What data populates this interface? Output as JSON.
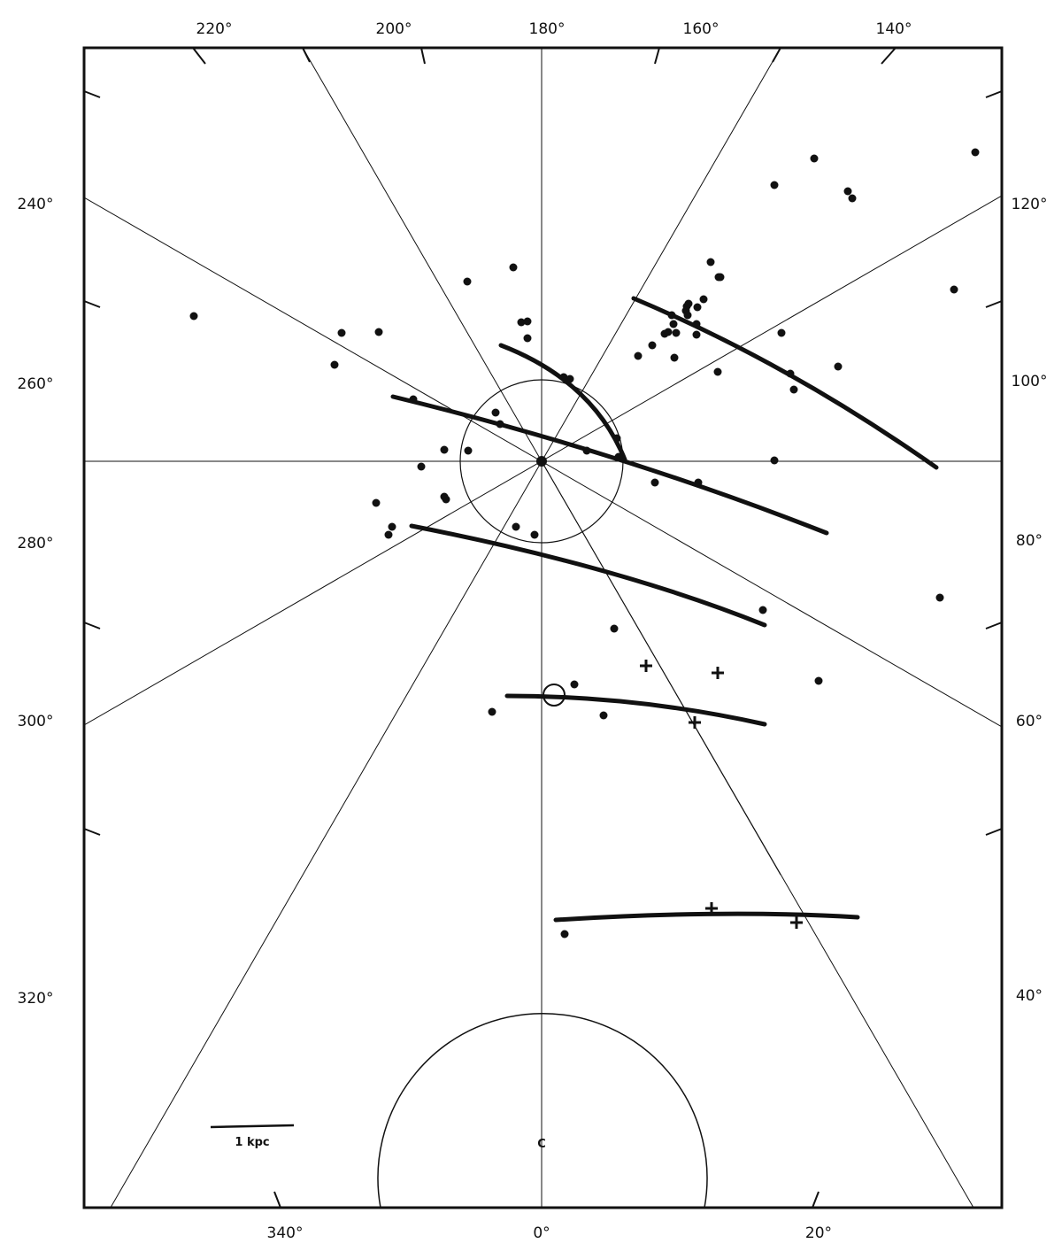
{
  "figure": {
    "top_labels": [
      "220°",
      "200°",
      "180°",
      "160°",
      "140°"
    ],
    "bottom_labels": [
      "340°",
      "0°",
      "20°"
    ],
    "left_labels": [
      "240°",
      "260°",
      "280°",
      "300°",
      "320°"
    ],
    "right_labels": [
      "120°",
      "100°",
      "80°",
      "60°",
      "40°"
    ],
    "scale_bar_label": "1 kpc",
    "center_label": "C"
  },
  "colors": {
    "ink": "#111111",
    "paper": "#ffffff"
  }
}
